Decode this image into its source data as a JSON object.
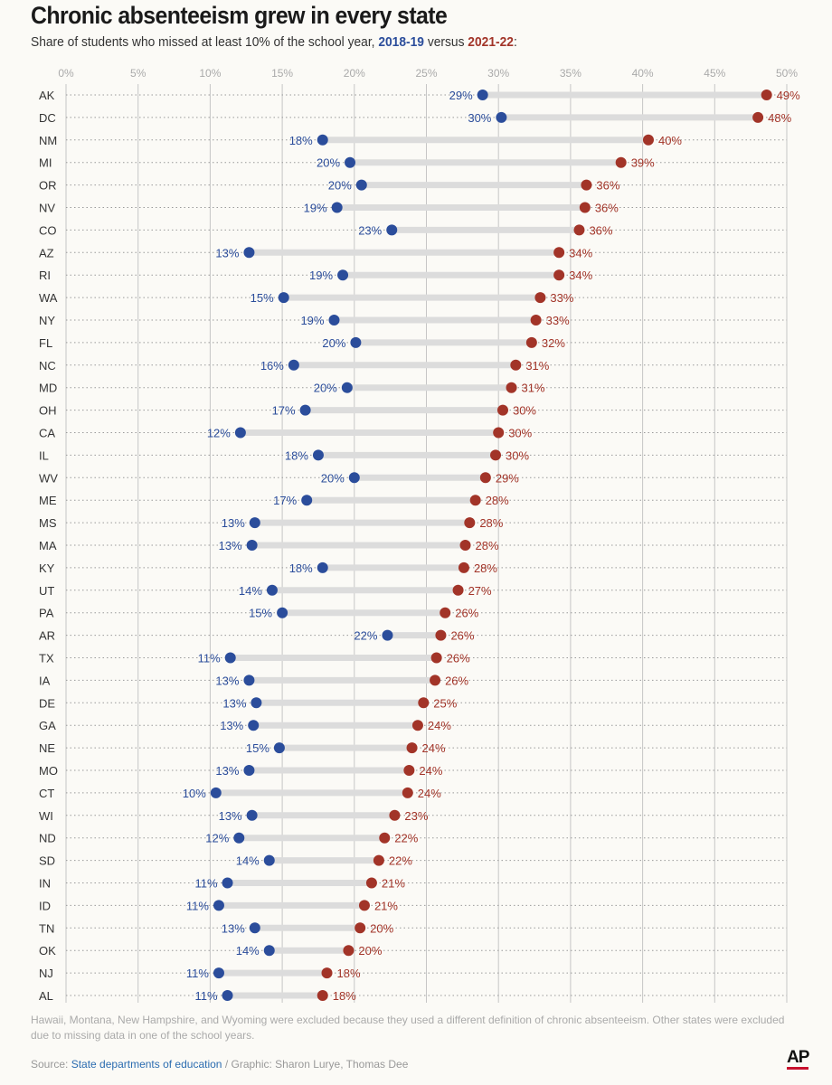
{
  "title": "Chronic absenteeism grew in every state",
  "subtitle": {
    "prefix": "Share of students who missed at least 10% of the school year, ",
    "series1": "2018-19",
    "middle": " versus ",
    "series2": "2021-22",
    "suffix": ":"
  },
  "colors": {
    "series1": "#2b4d9b",
    "series2": "#a23428",
    "connector": "#dcdcdc"
  },
  "chart_data": {
    "type": "dot-plot",
    "xlim": [
      0,
      50
    ],
    "x_ticks": [
      0,
      5,
      10,
      15,
      20,
      25,
      30,
      35,
      40,
      45,
      50
    ],
    "x_tick_labels": [
      "0%",
      "5%",
      "10%",
      "15%",
      "20%",
      "25%",
      "30%",
      "35%",
      "40%",
      "45%",
      "50%"
    ],
    "grid": true,
    "series": [
      {
        "name": "2018-19",
        "color": "#2b4d9b"
      },
      {
        "name": "2021-22",
        "color": "#a23428"
      }
    ],
    "rows": [
      {
        "state": "AK",
        "v2019": 28.9,
        "v2022": 48.6,
        "l2019": "29%",
        "l2022": "49%"
      },
      {
        "state": "DC",
        "v2019": 30.2,
        "v2022": 48.0,
        "l2019": "30%",
        "l2022": "48%"
      },
      {
        "state": "NM",
        "v2019": 17.8,
        "v2022": 40.4,
        "l2019": "18%",
        "l2022": "40%"
      },
      {
        "state": "MI",
        "v2019": 19.7,
        "v2022": 38.5,
        "l2019": "20%",
        "l2022": "39%"
      },
      {
        "state": "OR",
        "v2019": 20.5,
        "v2022": 36.1,
        "l2019": "20%",
        "l2022": "36%"
      },
      {
        "state": "NV",
        "v2019": 18.8,
        "v2022": 36.0,
        "l2019": "19%",
        "l2022": "36%"
      },
      {
        "state": "CO",
        "v2019": 22.6,
        "v2022": 35.6,
        "l2019": "23%",
        "l2022": "36%"
      },
      {
        "state": "AZ",
        "v2019": 12.7,
        "v2022": 34.2,
        "l2019": "13%",
        "l2022": "34%"
      },
      {
        "state": "RI",
        "v2019": 19.2,
        "v2022": 34.2,
        "l2019": "19%",
        "l2022": "34%"
      },
      {
        "state": "WA",
        "v2019": 15.1,
        "v2022": 32.9,
        "l2019": "15%",
        "l2022": "33%"
      },
      {
        "state": "NY",
        "v2019": 18.6,
        "v2022": 32.6,
        "l2019": "19%",
        "l2022": "33%"
      },
      {
        "state": "FL",
        "v2019": 20.1,
        "v2022": 32.3,
        "l2019": "20%",
        "l2022": "32%"
      },
      {
        "state": "NC",
        "v2019": 15.8,
        "v2022": 31.2,
        "l2019": "16%",
        "l2022": "31%"
      },
      {
        "state": "MD",
        "v2019": 19.5,
        "v2022": 30.9,
        "l2019": "20%",
        "l2022": "31%"
      },
      {
        "state": "OH",
        "v2019": 16.6,
        "v2022": 30.3,
        "l2019": "17%",
        "l2022": "30%"
      },
      {
        "state": "CA",
        "v2019": 12.1,
        "v2022": 30.0,
        "l2019": "12%",
        "l2022": "30%"
      },
      {
        "state": "IL",
        "v2019": 17.5,
        "v2022": 29.8,
        "l2019": "18%",
        "l2022": "30%"
      },
      {
        "state": "WV",
        "v2019": 20.0,
        "v2022": 29.1,
        "l2019": "20%",
        "l2022": "29%"
      },
      {
        "state": "ME",
        "v2019": 16.7,
        "v2022": 28.4,
        "l2019": "17%",
        "l2022": "28%"
      },
      {
        "state": "MS",
        "v2019": 13.1,
        "v2022": 28.0,
        "l2019": "13%",
        "l2022": "28%"
      },
      {
        "state": "MA",
        "v2019": 12.9,
        "v2022": 27.7,
        "l2019": "13%",
        "l2022": "28%"
      },
      {
        "state": "KY",
        "v2019": 17.8,
        "v2022": 27.6,
        "l2019": "18%",
        "l2022": "28%"
      },
      {
        "state": "UT",
        "v2019": 14.3,
        "v2022": 27.2,
        "l2019": "14%",
        "l2022": "27%"
      },
      {
        "state": "PA",
        "v2019": 15.0,
        "v2022": 26.3,
        "l2019": "15%",
        "l2022": "26%"
      },
      {
        "state": "AR",
        "v2019": 22.3,
        "v2022": 26.0,
        "l2019": "22%",
        "l2022": "26%"
      },
      {
        "state": "TX",
        "v2019": 11.4,
        "v2022": 25.7,
        "l2019": "11%",
        "l2022": "26%"
      },
      {
        "state": "IA",
        "v2019": 12.7,
        "v2022": 25.6,
        "l2019": "13%",
        "l2022": "26%"
      },
      {
        "state": "DE",
        "v2019": 13.2,
        "v2022": 24.8,
        "l2019": "13%",
        "l2022": "25%"
      },
      {
        "state": "GA",
        "v2019": 13.0,
        "v2022": 24.4,
        "l2019": "13%",
        "l2022": "24%"
      },
      {
        "state": "NE",
        "v2019": 14.8,
        "v2022": 24.0,
        "l2019": "15%",
        "l2022": "24%"
      },
      {
        "state": "MO",
        "v2019": 12.7,
        "v2022": 23.8,
        "l2019": "13%",
        "l2022": "24%"
      },
      {
        "state": "CT",
        "v2019": 10.4,
        "v2022": 23.7,
        "l2019": "10%",
        "l2022": "24%"
      },
      {
        "state": "WI",
        "v2019": 12.9,
        "v2022": 22.8,
        "l2019": "13%",
        "l2022": "23%"
      },
      {
        "state": "ND",
        "v2019": 12.0,
        "v2022": 22.1,
        "l2019": "12%",
        "l2022": "22%"
      },
      {
        "state": "SD",
        "v2019": 14.1,
        "v2022": 21.7,
        "l2019": "14%",
        "l2022": "22%"
      },
      {
        "state": "IN",
        "v2019": 11.2,
        "v2022": 21.2,
        "l2019": "11%",
        "l2022": "21%"
      },
      {
        "state": "ID",
        "v2019": 10.6,
        "v2022": 20.7,
        "l2019": "11%",
        "l2022": "21%"
      },
      {
        "state": "TN",
        "v2019": 13.1,
        "v2022": 20.4,
        "l2019": "13%",
        "l2022": "20%"
      },
      {
        "state": "OK",
        "v2019": 14.1,
        "v2022": 19.6,
        "l2019": "14%",
        "l2022": "20%"
      },
      {
        "state": "NJ",
        "v2019": 10.6,
        "v2022": 18.1,
        "l2019": "11%",
        "l2022": "18%"
      },
      {
        "state": "AL",
        "v2019": 11.2,
        "v2022": 17.8,
        "l2019": "11%",
        "l2022": "18%"
      }
    ]
  },
  "footer": {
    "note": "Hawaii, Montana, New Hampshire, and Wyoming were excluded because they used a different definition of chronic absenteeism. Other states were excluded due to missing data in one of the school years.",
    "source_prefix": "Source: ",
    "source_link": "State departments of education",
    "source_suffix": " / Graphic: Sharon Lurye, Thomas Dee",
    "logo": "AP"
  }
}
